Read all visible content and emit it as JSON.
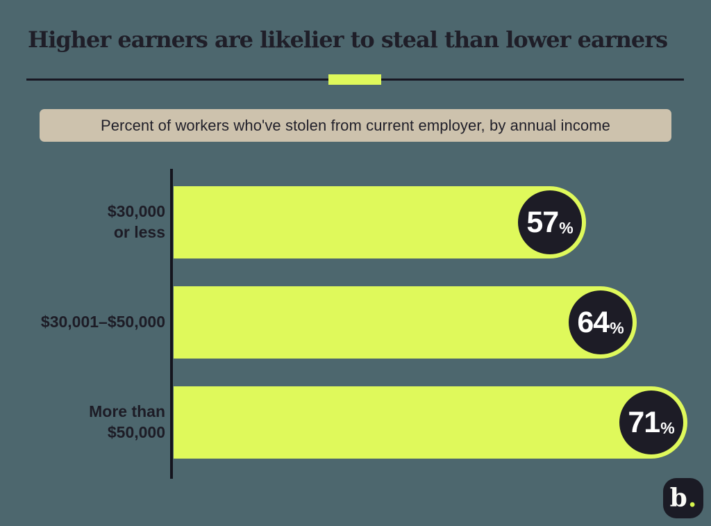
{
  "page": {
    "background_color": "#4d676e"
  },
  "header": {
    "title": "Higher earners are likelier to steal than lower earners",
    "divider_color": "#181722",
    "divider_accent_color": "#dff95b"
  },
  "subtitle": {
    "text": "Percent of workers who've stolen from current employer, by annual income",
    "background_color": "#cdc2ad"
  },
  "chart_data": {
    "type": "bar",
    "orientation": "horizontal",
    "title": "Percent of workers who've stolen from current employer, by annual income",
    "categories": [
      "$30,000\nor less",
      "$30,001–$50,000",
      "More than\n$50,000"
    ],
    "values": [
      57,
      64,
      71
    ],
    "value_labels": [
      "57%",
      "64%",
      "71%"
    ],
    "unit": "%",
    "xlim": [
      0,
      74
    ],
    "grid": false,
    "legend": false,
    "bar_color": "#dff95b",
    "badge_color": "#1d1c26",
    "badge_text_color": "#ffffff",
    "axis_color": "#14141d",
    "label_color": "#1d1c26"
  },
  "logo": {
    "letter": "b",
    "dot": ".",
    "background_color": "#1b1b25",
    "dot_color": "#d7f64e"
  }
}
